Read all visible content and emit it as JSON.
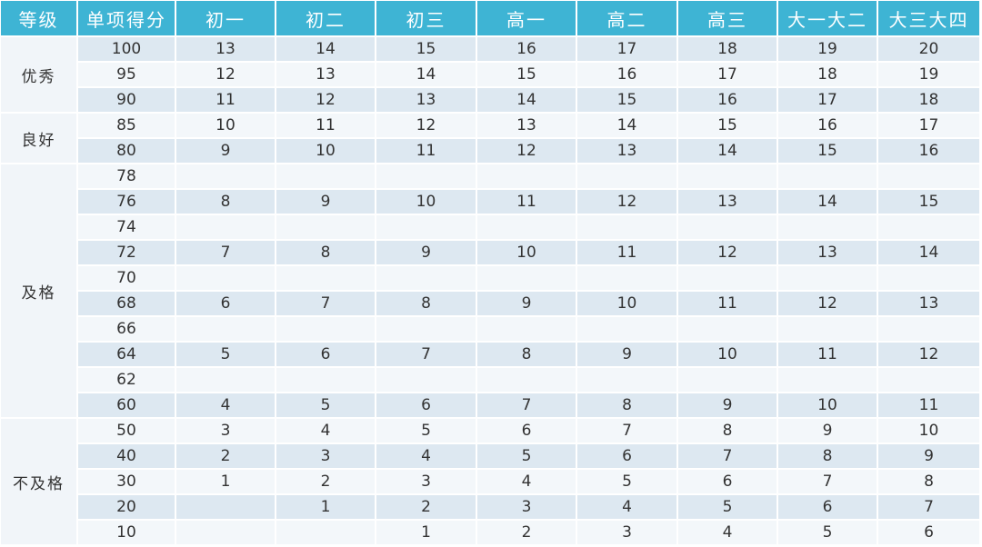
{
  "header": [
    "等级",
    "单项得分",
    "初一",
    "初二",
    "初三",
    "高一",
    "高二",
    "高三",
    "大一大二",
    "大三大四"
  ],
  "groups": [
    {
      "label": "优秀",
      "rows": [
        {
          "score": 100,
          "values": [
            13,
            14,
            15,
            16,
            17,
            18,
            19,
            20
          ]
        },
        {
          "score": 95,
          "values": [
            12,
            13,
            14,
            15,
            16,
            17,
            18,
            19
          ]
        },
        {
          "score": 90,
          "values": [
            11,
            12,
            13,
            14,
            15,
            16,
            17,
            18
          ]
        }
      ]
    },
    {
      "label": "良好",
      "rows": [
        {
          "score": 85,
          "values": [
            10,
            11,
            12,
            13,
            14,
            15,
            16,
            17
          ]
        },
        {
          "score": 80,
          "values": [
            9,
            10,
            11,
            12,
            13,
            14,
            15,
            16
          ]
        }
      ]
    },
    {
      "label": "及格",
      "rows": [
        {
          "score": 78,
          "values": [
            null,
            null,
            null,
            null,
            null,
            null,
            null,
            null
          ]
        },
        {
          "score": 76,
          "values": [
            8,
            9,
            10,
            11,
            12,
            13,
            14,
            15
          ]
        },
        {
          "score": 74,
          "values": [
            null,
            null,
            null,
            null,
            null,
            null,
            null,
            null
          ]
        },
        {
          "score": 72,
          "values": [
            7,
            8,
            9,
            10,
            11,
            12,
            13,
            14
          ]
        },
        {
          "score": 70,
          "values": [
            null,
            null,
            null,
            null,
            null,
            null,
            null,
            null
          ]
        },
        {
          "score": 68,
          "values": [
            6,
            7,
            8,
            9,
            10,
            11,
            12,
            13
          ]
        },
        {
          "score": 66,
          "values": [
            null,
            null,
            null,
            null,
            null,
            null,
            null,
            null
          ]
        },
        {
          "score": 64,
          "values": [
            5,
            6,
            7,
            8,
            9,
            10,
            11,
            12
          ]
        },
        {
          "score": 62,
          "values": [
            null,
            null,
            null,
            null,
            null,
            null,
            null,
            null
          ]
        },
        {
          "score": 60,
          "values": [
            4,
            5,
            6,
            7,
            8,
            9,
            10,
            11
          ]
        }
      ]
    },
    {
      "label": "不及格",
      "rows": [
        {
          "score": 50,
          "values": [
            3,
            4,
            5,
            6,
            7,
            8,
            9,
            10
          ]
        },
        {
          "score": 40,
          "values": [
            2,
            3,
            4,
            5,
            6,
            7,
            8,
            9
          ]
        },
        {
          "score": 30,
          "values": [
            1,
            2,
            3,
            4,
            5,
            6,
            7,
            8
          ]
        },
        {
          "score": 20,
          "values": [
            null,
            1,
            2,
            3,
            4,
            5,
            6,
            7
          ]
        },
        {
          "score": 10,
          "values": [
            null,
            null,
            1,
            2,
            3,
            4,
            5,
            6
          ]
        }
      ]
    }
  ]
}
